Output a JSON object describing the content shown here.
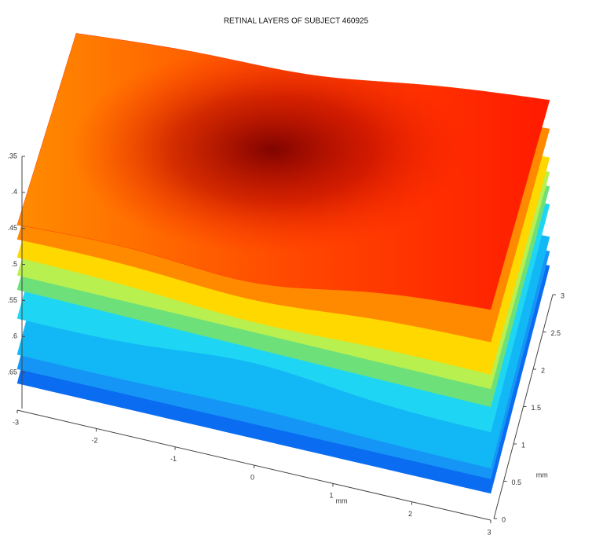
{
  "chart_data": {
    "type": "surface",
    "title": "RETINAL LAYERS OF SUBJECT 460925",
    "xlabel": "mm",
    "ylabel": "mm",
    "xlim": [
      -3,
      3
    ],
    "xticks": [
      -3,
      -2,
      -1,
      0,
      1,
      2,
      3
    ],
    "ylim": [
      0,
      3
    ],
    "yticks": [
      0,
      0.5,
      1,
      1.5,
      2,
      2.5,
      3
    ],
    "zlim": [
      0.35,
      0.7
    ],
    "zreverse": true,
    "zticks": [
      {
        "value": 0.35,
        "label": ".35"
      },
      {
        "value": 0.4,
        "label": ".4"
      },
      {
        "value": 0.45,
        "label": ".45"
      },
      {
        "value": 0.5,
        "label": ".5"
      },
      {
        "value": 0.55,
        "label": ".55"
      },
      {
        "value": 0.6,
        "label": ".6"
      },
      {
        "value": 0.65,
        "label": ".65"
      }
    ],
    "series": [
      {
        "color": "#ff3a00",
        "values": [
          0.445,
          0.41,
          0.43,
          0.49
        ],
        "dip": 0.05
      },
      {
        "color": "#ff8a00",
        "values": [
          0.465,
          0.455,
          0.47,
          0.51
        ],
        "dip": 0.03
      },
      {
        "color": "#ffd800",
        "values": [
          0.49,
          0.5,
          0.51,
          0.53
        ],
        "dip": 0.02
      },
      {
        "color": "#b8f050",
        "values": [
          0.515,
          0.52,
          0.53,
          0.55
        ],
        "dip": 0.0
      },
      {
        "color": "#6ee07a",
        "values": [
          0.535,
          0.545,
          0.55,
          0.56
        ],
        "dip": 0.0
      },
      {
        "color": "#1ed6f4",
        "values": [
          0.575,
          0.58,
          0.575,
          0.59
        ],
        "dip": -0.04
      },
      {
        "color": "#12b8f6",
        "values": [
          0.625,
          0.63,
          0.62,
          0.63
        ],
        "dip": -0.01
      },
      {
        "color": "#1595f5",
        "values": [
          0.645,
          0.645,
          0.64,
          0.65
        ],
        "dip": 0.0
      },
      {
        "color": "#0a6cf0",
        "values": [
          0.665,
          0.665,
          0.66,
          0.665
        ],
        "dip": 0.0
      }
    ]
  }
}
